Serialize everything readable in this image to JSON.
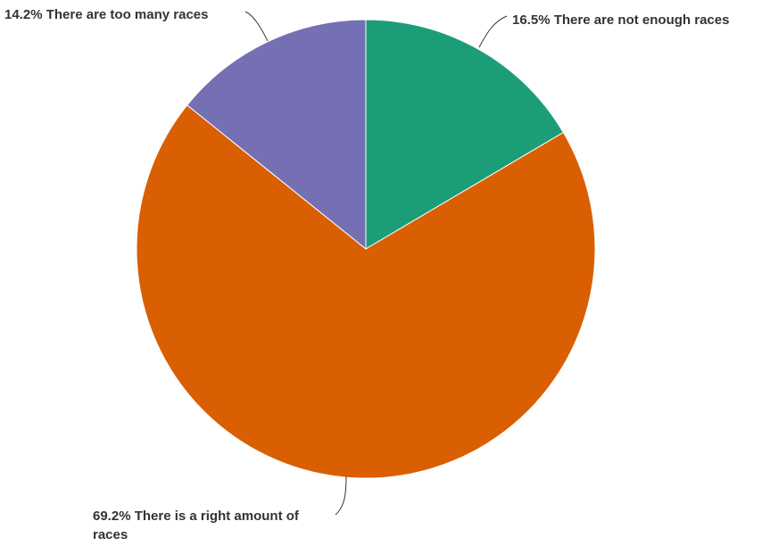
{
  "chart_data": {
    "type": "pie",
    "slices": [
      {
        "label": "There are not enough races",
        "value": 16.5,
        "value_text": "16.5%",
        "color": "#1b9e77"
      },
      {
        "label": "There is a right amount of races",
        "value": 69.2,
        "value_text": "69.2%",
        "color": "#d95f02"
      },
      {
        "label": "There are too many races",
        "value": 14.2,
        "value_text": "14.2%",
        "color": "#7570b3"
      }
    ],
    "start": "12 o'clock",
    "direction": "clockwise",
    "legend": "none",
    "labels": "outside with leader lines"
  }
}
